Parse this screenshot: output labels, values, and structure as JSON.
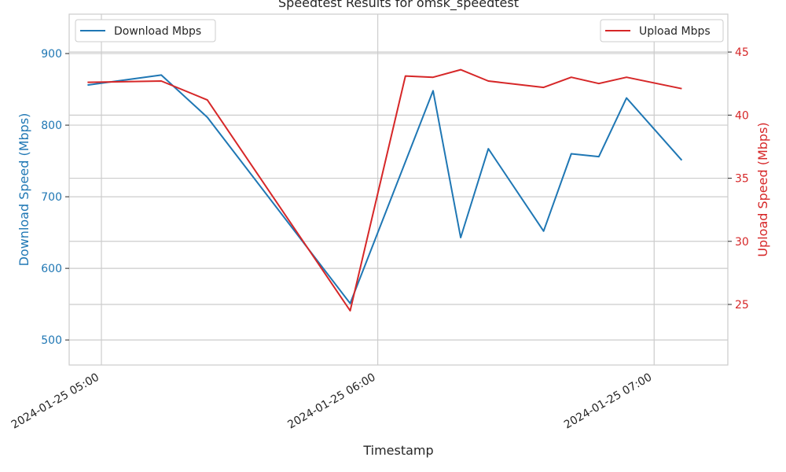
{
  "chart_data": {
    "type": "line",
    "title": "Speedtest Results for omsk_speedtest",
    "xlabel": "Timestamp",
    "ylabel_left": "Download Speed (Mbps)",
    "ylabel_right": "Upload Speed (Mbps)",
    "x_ticks": [
      "2024-01-25 05:00",
      "2024-01-25 06:00",
      "2024-01-25 07:00"
    ],
    "x_range": [
      "2024-01-25 04:53",
      "2024-01-25 07:16"
    ],
    "ylim_left": [
      465,
      955
    ],
    "ylim_right": [
      20.2,
      48
    ],
    "yticks_left": [
      500,
      600,
      700,
      800,
      900
    ],
    "yticks_right": [
      25,
      30,
      35,
      40,
      45
    ],
    "grid": true,
    "legend_left_placement": "top-left",
    "legend_right_placement": "top-right",
    "series": [
      {
        "name": "Download Mbps",
        "axis": "left",
        "color": "#1f77b4",
        "points": [
          {
            "x": "2024-01-25 04:57",
            "y": 856
          },
          {
            "x": "2024-01-25 05:13",
            "y": 870
          },
          {
            "x": "2024-01-25 05:23",
            "y": 811
          },
          {
            "x": "2024-01-25 05:54",
            "y": 551
          },
          {
            "x": "2024-01-25 06:12",
            "y": 848
          },
          {
            "x": "2024-01-25 06:18",
            "y": 643
          },
          {
            "x": "2024-01-25 06:24",
            "y": 767
          },
          {
            "x": "2024-01-25 06:36",
            "y": 652
          },
          {
            "x": "2024-01-25 06:42",
            "y": 760
          },
          {
            "x": "2024-01-25 06:48",
            "y": 756
          },
          {
            "x": "2024-01-25 06:54",
            "y": 838
          },
          {
            "x": "2024-01-25 07:06",
            "y": 751
          }
        ]
      },
      {
        "name": "Upload Mbps",
        "axis": "right",
        "color": "#d62728",
        "points": [
          {
            "x": "2024-01-25 04:57",
            "y": 42.6
          },
          {
            "x": "2024-01-25 05:13",
            "y": 42.7
          },
          {
            "x": "2024-01-25 05:23",
            "y": 41.2
          },
          {
            "x": "2024-01-25 05:54",
            "y": 24.5
          },
          {
            "x": "2024-01-25 06:06",
            "y": 43.1
          },
          {
            "x": "2024-01-25 06:12",
            "y": 43.0
          },
          {
            "x": "2024-01-25 06:18",
            "y": 43.6
          },
          {
            "x": "2024-01-25 06:24",
            "y": 42.7
          },
          {
            "x": "2024-01-25 06:36",
            "y": 42.2
          },
          {
            "x": "2024-01-25 06:42",
            "y": 43.0
          },
          {
            "x": "2024-01-25 06:48",
            "y": 42.5
          },
          {
            "x": "2024-01-25 06:54",
            "y": 43.0
          },
          {
            "x": "2024-01-25 07:06",
            "y": 42.1
          }
        ]
      }
    ]
  }
}
